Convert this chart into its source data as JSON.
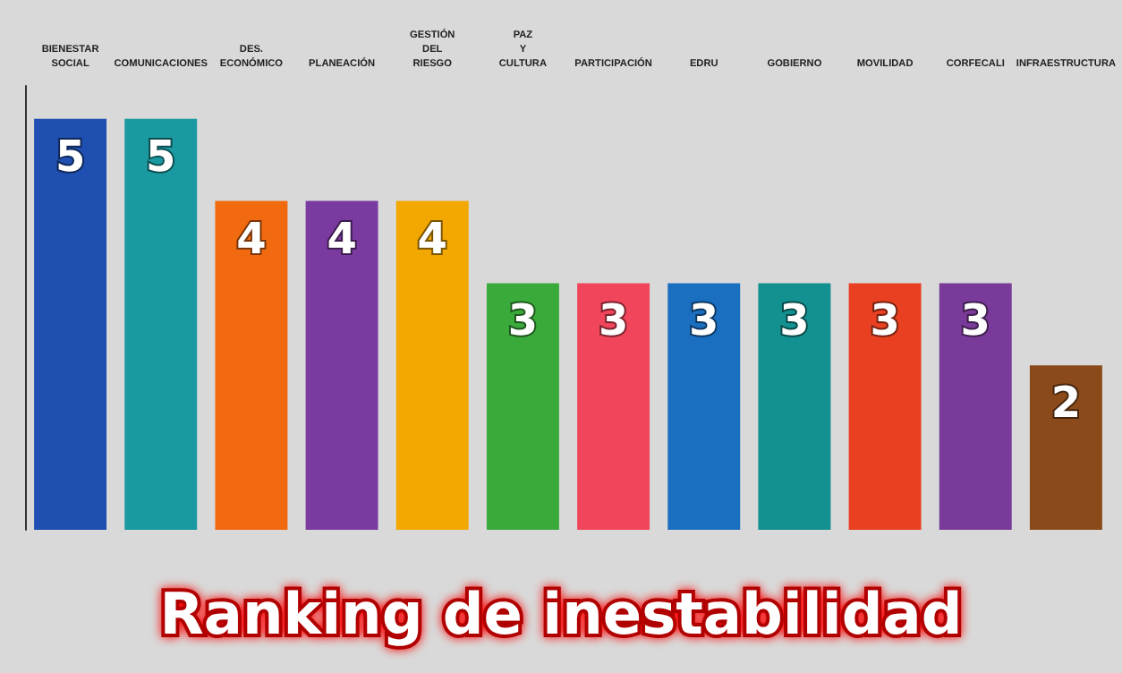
{
  "chart_data": {
    "type": "bar",
    "title": "Ranking de inestabilidad",
    "categories": [
      "BIENESTAR SOCIAL",
      "COMUNICACIONES",
      "DES. ECONÓMICO",
      "PLANEACIÓN",
      "GESTIÓN DEL RIESGO",
      "PAZ Y CULTURA",
      "PARTICIPACIÓN",
      "EDRU",
      "GOBIERNO",
      "MOVILIDAD",
      "CORFECALI",
      "INFRAESTRUCTURA"
    ],
    "values": [
      5,
      5,
      4,
      4,
      4,
      3,
      3,
      3,
      3,
      3,
      3,
      2
    ],
    "colors": [
      "#1f4fb0",
      "#1a9aa0",
      "#f26a10",
      "#7a3aa0",
      "#f2a800",
      "#3aaa3a",
      "#f0455a",
      "#1a6fc0",
      "#139090",
      "#e84020",
      "#7a3a9a",
      "#8a4a1a"
    ],
    "data_labels": true
  }
}
